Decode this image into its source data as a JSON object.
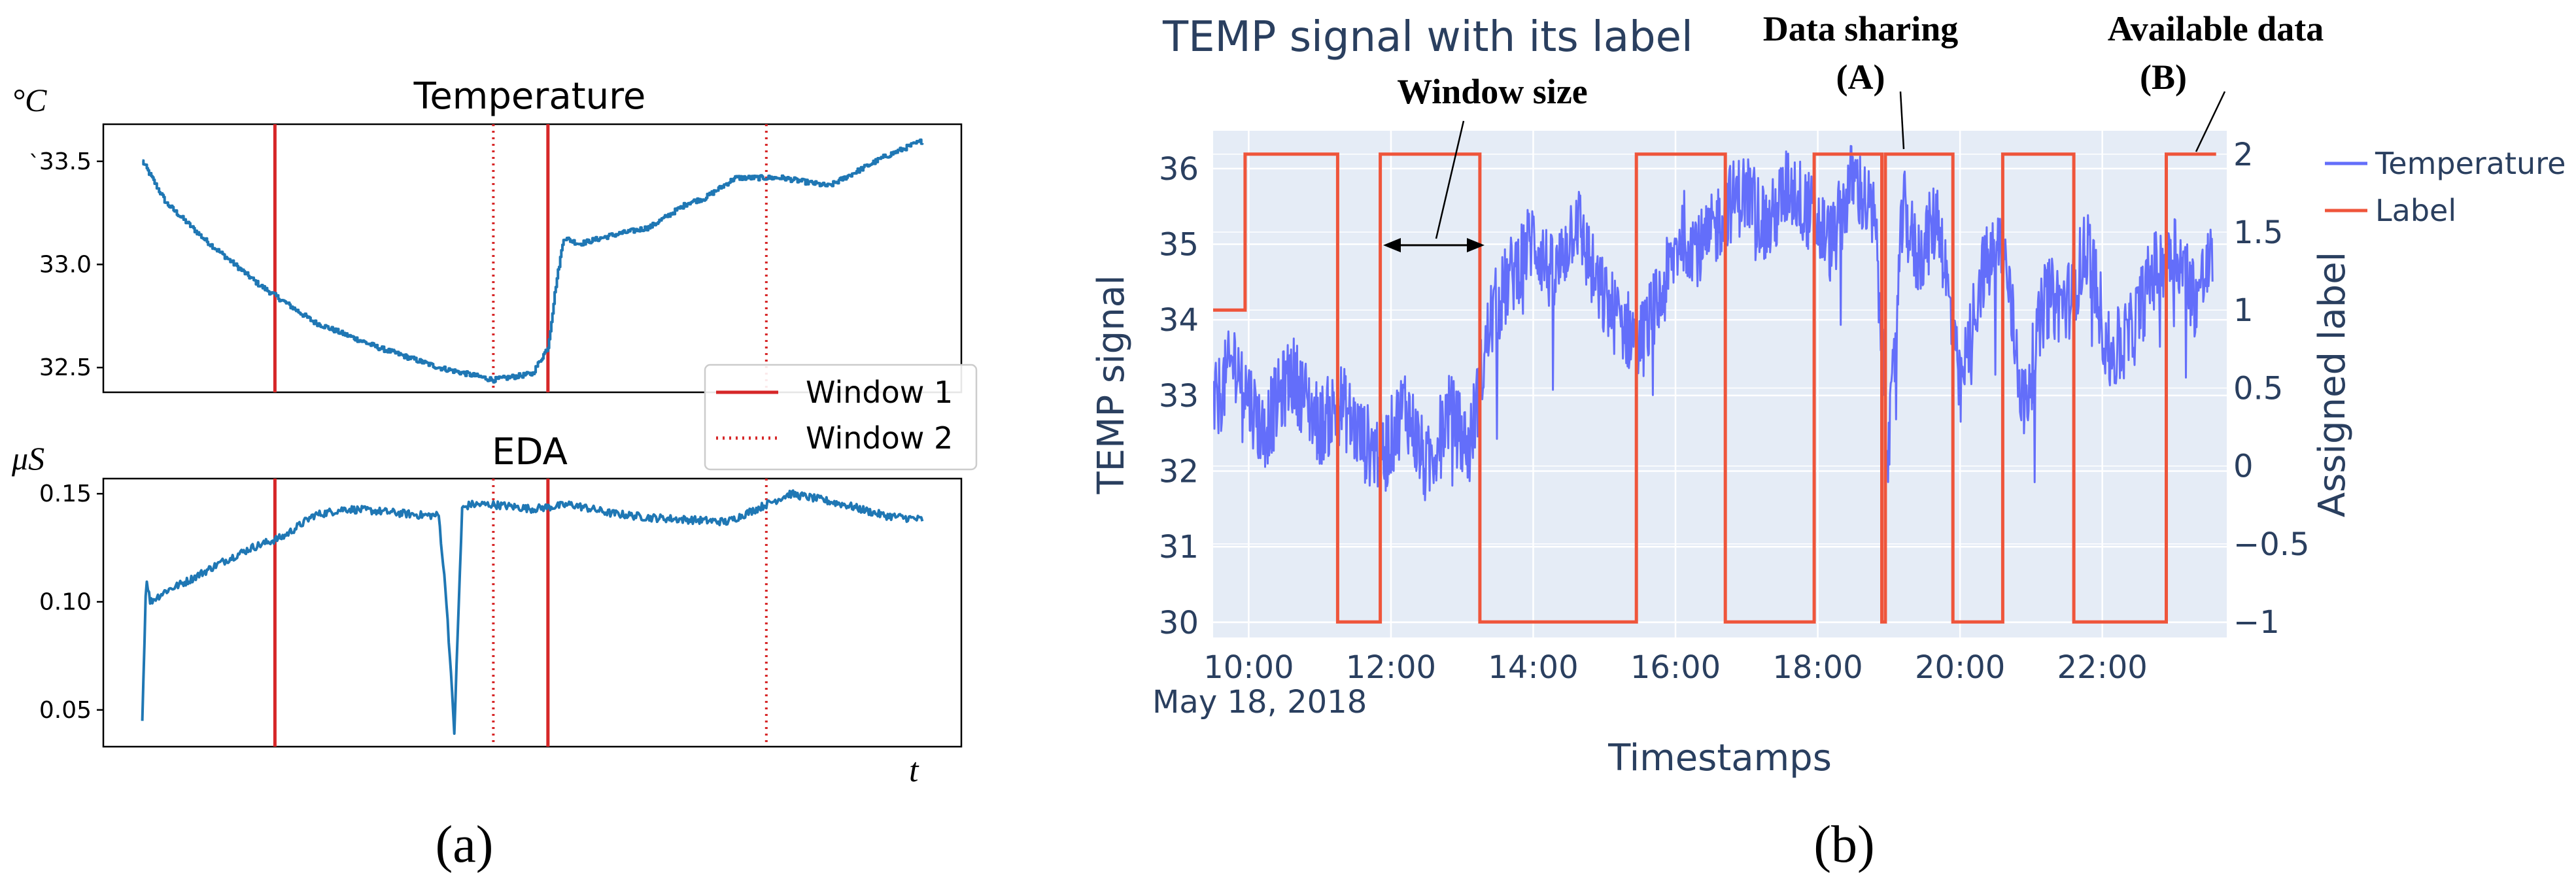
{
  "panel_labels": {
    "a": "(a)",
    "b": "(b)"
  },
  "colors": {
    "mpl_line": "#1f77b4",
    "window_line": "#d62728",
    "plotly_bg": "#e5ecf6",
    "plotly_temp": "#636efa",
    "plotly_label": "#ef553b",
    "plotly_text": "#2a3f5f"
  },
  "chart_data": [
    {
      "type": "line",
      "title": "Temperature",
      "ylabel": "°C",
      "ylabel_prefix": "`",
      "ylim": [
        32.38,
        33.68
      ],
      "yticks": [
        32.5,
        33.0,
        33.5
      ],
      "ytick_labels": [
        "32.5",
        "33.0",
        "33.5"
      ],
      "x_range": [
        -0.05,
        1.05
      ],
      "series": [
        {
          "name": "Temperature",
          "x": [
            0,
            0.03,
            0.08,
            0.15,
            0.22,
            0.3,
            0.38,
            0.45,
            0.5,
            0.52,
            0.53,
            0.54,
            0.56,
            0.6,
            0.65,
            0.7,
            0.72,
            0.76,
            0.82,
            0.88,
            0.9,
            0.95,
            1.0
          ],
          "y": [
            33.5,
            33.3,
            33.12,
            32.9,
            32.72,
            32.6,
            32.5,
            32.44,
            32.47,
            32.6,
            32.9,
            33.13,
            33.1,
            33.14,
            33.18,
            33.3,
            33.32,
            33.42,
            33.42,
            33.38,
            33.42,
            33.52,
            33.6
          ]
        }
      ],
      "windows": {
        "window_1": [
          0.17,
          0.52
        ],
        "window_2": [
          0.45,
          0.8
        ]
      },
      "legend": {
        "position": "right",
        "entries": [
          {
            "label": "Window 1",
            "style": "solid"
          },
          {
            "label": "Window 2",
            "style": "dotted"
          }
        ]
      }
    },
    {
      "type": "line",
      "title": "EDA",
      "ylabel": "μS",
      "xlabel": "t",
      "ylim": [
        0.033,
        0.157
      ],
      "yticks": [
        0.05,
        0.1,
        0.15
      ],
      "ytick_labels": [
        "0.05",
        "0.10",
        "0.15"
      ],
      "x_range": [
        -0.05,
        1.05
      ],
      "series": [
        {
          "name": "EDA",
          "x": [
            0,
            0.005,
            0.01,
            0.03,
            0.06,
            0.1,
            0.14,
            0.18,
            0.22,
            0.26,
            0.3,
            0.33,
            0.36,
            0.38,
            0.39,
            0.4,
            0.41,
            0.42,
            0.45,
            0.5,
            0.55,
            0.6,
            0.65,
            0.7,
            0.75,
            0.8,
            0.83,
            0.86,
            0.9,
            0.95,
            1.0
          ],
          "y": [
            0.045,
            0.112,
            0.1,
            0.105,
            0.11,
            0.118,
            0.125,
            0.13,
            0.14,
            0.143,
            0.142,
            0.141,
            0.14,
            0.14,
            0.1,
            0.04,
            0.143,
            0.145,
            0.145,
            0.143,
            0.145,
            0.141,
            0.139,
            0.138,
            0.137,
            0.145,
            0.15,
            0.148,
            0.145,
            0.14,
            0.138
          ]
        }
      ],
      "windows": {
        "window_1": [
          0.17,
          0.52
        ],
        "window_2": [
          0.45,
          0.8
        ]
      }
    },
    {
      "type": "line",
      "title": "TEMP signal with its label",
      "xlabel": "Timestamps",
      "ylabel": "TEMP signal",
      "y2label": "Assigned label",
      "date_label": "May 18, 2018",
      "xlim": [
        9.5,
        23.75
      ],
      "ylim": [
        29.8,
        36.5
      ],
      "y2lim": [
        -1.1,
        2.15
      ],
      "xticks": [
        10,
        12,
        14,
        16,
        18,
        20,
        22
      ],
      "xtick_labels": [
        "10:00",
        "12:00",
        "14:00",
        "16:00",
        "18:00",
        "20:00",
        "22:00"
      ],
      "yticks": [
        30,
        31,
        32,
        33,
        34,
        35,
        36
      ],
      "ytick_labels": [
        "30",
        "31",
        "32",
        "33",
        "34",
        "35",
        "36"
      ],
      "y2ticks": [
        -1,
        -0.5,
        0,
        0.5,
        1,
        1.5,
        2
      ],
      "y2tick_labels": [
        "−1",
        "−0.5",
        "0",
        "0.5",
        "1",
        "1.5",
        "2"
      ],
      "series": [
        {
          "name": "Temperature",
          "axis": "y",
          "x": [
            9.5,
            9.8,
            10.2,
            10.6,
            11.0,
            11.3,
            11.6,
            11.9,
            12.2,
            12.5,
            12.8,
            13.1,
            13.4,
            13.7,
            14.0,
            14.3,
            14.6,
            14.9,
            15.2,
            15.5,
            15.8,
            16.1,
            16.4,
            16.7,
            17.0,
            17.3,
            17.6,
            17.9,
            18.2,
            18.5,
            18.8,
            19.0,
            19.2,
            19.4,
            19.7,
            20.0,
            20.3,
            20.6,
            20.9,
            21.2,
            21.5,
            21.8,
            22.1,
            22.4,
            22.7,
            23.0,
            23.3,
            23.55
          ],
          "y": [
            32.8,
            33.5,
            32.5,
            33.3,
            32.6,
            32.9,
            32.4,
            32.2,
            32.9,
            32.0,
            32.8,
            32.3,
            34.0,
            34.6,
            35.1,
            34.5,
            35.4,
            34.4,
            34.0,
            33.7,
            34.3,
            35.2,
            34.9,
            35.5,
            35.7,
            35.2,
            35.8,
            35.4,
            35.0,
            35.9,
            35.3,
            32.2,
            35.5,
            34.8,
            35.4,
            33.0,
            34.6,
            35.0,
            32.8,
            34.3,
            34.2,
            35.0,
            33.5,
            33.8,
            34.6,
            35.0,
            34.3,
            34.8
          ]
        },
        {
          "name": "Label",
          "axis": "y2",
          "x": [
            9.5,
            9.95,
            9.95,
            11.25,
            11.25,
            11.85,
            11.85,
            13.25,
            13.25,
            15.45,
            15.45,
            16.7,
            16.7,
            17.95,
            17.95,
            18.9,
            18.9,
            18.95,
            18.95,
            19.9,
            19.9,
            20.6,
            20.6,
            21.6,
            21.6,
            22.9,
            22.9,
            23.6
          ],
          "y": [
            1,
            1,
            2,
            2,
            -1,
            -1,
            2,
            2,
            -1,
            -1,
            2,
            2,
            -1,
            -1,
            2,
            2,
            -1,
            -1,
            2,
            2,
            -1,
            -1,
            2,
            2,
            -1,
            -1,
            2,
            2
          ]
        }
      ],
      "legend": {
        "position": "right",
        "entries": [
          {
            "label": "Temperature"
          },
          {
            "label": "Label"
          }
        ]
      },
      "annotations": [
        {
          "text": "Window size"
        },
        {
          "text": "Data sharing"
        },
        {
          "text": "(A)"
        },
        {
          "text": "Available data"
        },
        {
          "text": "(B)"
        }
      ]
    }
  ]
}
